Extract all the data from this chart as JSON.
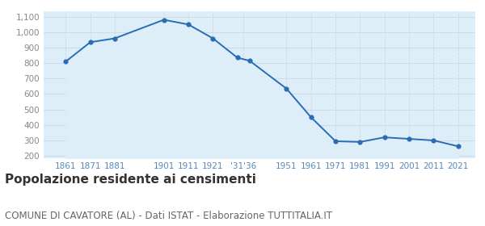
{
  "years": [
    1861,
    1871,
    1881,
    1901,
    1911,
    1921,
    1931,
    1936,
    1951,
    1961,
    1971,
    1981,
    1991,
    2001,
    2011,
    2021
  ],
  "population": [
    810,
    935,
    960,
    1080,
    1050,
    960,
    835,
    815,
    635,
    450,
    295,
    290,
    320,
    310,
    300,
    262
  ],
  "xtick_positions": [
    1861,
    1871,
    1881,
    1901,
    1911,
    1921,
    1933.5,
    1951,
    1961,
    1971,
    1981,
    1991,
    2001,
    2011,
    2021
  ],
  "xtick_labels": [
    "1861",
    "1871",
    "1881",
    "1901",
    "1911",
    "1921",
    "'31'36",
    "1951",
    "1961",
    "1971",
    "1981",
    "1991",
    "2001",
    "2011",
    "2021"
  ],
  "yticks": [
    200,
    300,
    400,
    500,
    600,
    700,
    800,
    900,
    1000,
    1100
  ],
  "ytick_labels": [
    "200",
    "300",
    "400",
    "500",
    "600",
    "700",
    "800",
    "900",
    "1,000",
    "1,100"
  ],
  "ylim": [
    185,
    1135
  ],
  "xlim_left": 1852,
  "xlim_right": 2028,
  "line_color": "#2a6db5",
  "fill_color": "#ddeef8",
  "marker_color": "#2a6db5",
  "grid_color": "#c8d8e8",
  "bg_color": "#ffffff",
  "title": "Popolazione residente ai censimenti",
  "subtitle": "COMUNE DI CAVATORE (AL) - Dati ISTAT - Elaborazione TUTTITALIA.IT",
  "title_fontsize": 11,
  "subtitle_fontsize": 8.5,
  "tick_color": "#5588bb",
  "ytick_color": "#888888"
}
